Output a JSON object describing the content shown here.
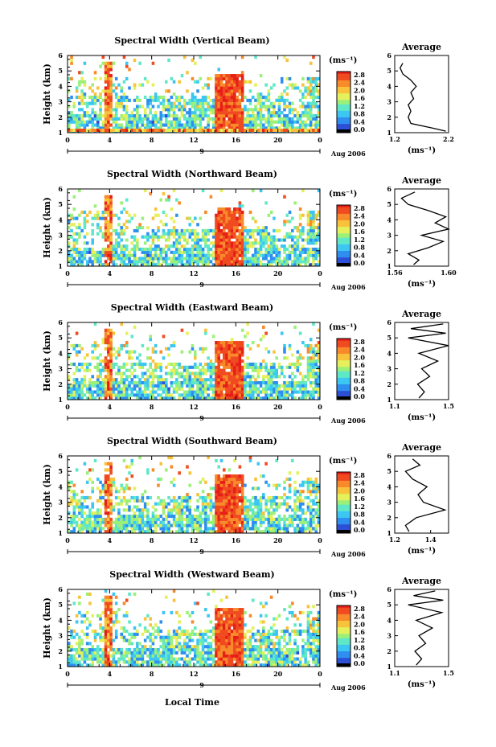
{
  "figure": {
    "xlabel": "Local Time",
    "x_ticks": [
      "0",
      "4",
      "8",
      "12",
      "16",
      "20",
      "0"
    ],
    "date_label": "9",
    "date_suffix": "Aug 2006",
    "colorbar_unit": "(ms⁻¹)",
    "colorbar_ticks": [
      "2.8",
      "2.4",
      "2.0",
      "1.6",
      "1.2",
      "0.8",
      "0.4",
      "0.0"
    ],
    "average_title": "Average",
    "average_unit": "(ms⁻¹)"
  },
  "colors": {
    "colormap": [
      "#1d2a8a",
      "#2b4fd6",
      "#2f8ff0",
      "#3cc6f2",
      "#5ee8c8",
      "#9cf07a",
      "#e6f05a",
      "#f8c23a",
      "#f88a2a",
      "#f04a20",
      "#e61e18"
    ],
    "colorbar_bottom": "#000000"
  },
  "chart_data": [
    {
      "type": "heatmap",
      "title": "Spectral Width (Vertical Beam)",
      "ylabel": "Height (km)",
      "xlabel": "Local Time",
      "xlim": [
        0,
        24
      ],
      "ylim": [
        1,
        6
      ],
      "y_ticks": [
        "1",
        "2",
        "3",
        "4",
        "5",
        "6"
      ],
      "colorbar_range": [
        0.0,
        2.8
      ],
      "features": {
        "storm_start_h": 14.0,
        "storm_end_h": 16.8,
        "storm_top_km": 4.8,
        "spike_h": 3.9,
        "surface_echo": true
      },
      "average_profile": {
        "xlim": [
          1.2,
          2.2
        ],
        "x_ticks": [
          "1.2",
          "2.2"
        ],
        "height_km": [
          1.1,
          1.3,
          1.6,
          2.0,
          2.4,
          2.8,
          3.2,
          3.6,
          4.0,
          4.4,
          4.8,
          5.2,
          5.5
        ],
        "width_ms": [
          2.15,
          1.9,
          1.5,
          1.45,
          1.5,
          1.45,
          1.55,
          1.5,
          1.6,
          1.5,
          1.35,
          1.3,
          1.35
        ]
      }
    },
    {
      "type": "heatmap",
      "title": "Spectral Width (Northward Beam)",
      "ylabel": "Height (km)",
      "xlabel": "Local Time",
      "xlim": [
        0,
        24
      ],
      "ylim": [
        1,
        6
      ],
      "y_ticks": [
        "1",
        "2",
        "3",
        "4",
        "5",
        "6"
      ],
      "colorbar_range": [
        0.0,
        2.8
      ],
      "features": {
        "storm_start_h": 14.0,
        "storm_end_h": 16.8,
        "storm_top_km": 4.8,
        "spike_h": 3.9,
        "surface_echo": false
      },
      "average_profile": {
        "xlim": [
          1.56,
          1.6
        ],
        "x_ticks": [
          "1.56",
          "1.60"
        ],
        "height_km": [
          1.1,
          1.4,
          1.8,
          2.2,
          2.6,
          3.0,
          3.4,
          3.8,
          4.2,
          4.6,
          5.0,
          5.4,
          5.8
        ],
        "width_ms": [
          1.574,
          1.578,
          1.57,
          1.585,
          1.596,
          1.58,
          1.6,
          1.59,
          1.598,
          1.585,
          1.57,
          1.565,
          1.575
        ]
      }
    },
    {
      "type": "heatmap",
      "title": "Spectral Width (Eastward Beam)",
      "ylabel": "Height (km)",
      "xlabel": "Local Time",
      "xlim": [
        0,
        24
      ],
      "ylim": [
        1,
        6
      ],
      "y_ticks": [
        "1",
        "2",
        "3",
        "4",
        "5",
        "6"
      ],
      "colorbar_range": [
        0.0,
        2.8
      ],
      "features": {
        "storm_start_h": 14.0,
        "storm_end_h": 16.8,
        "storm_top_km": 4.8,
        "spike_h": 3.9,
        "surface_echo": false
      },
      "average_profile": {
        "xlim": [
          1.1,
          1.5
        ],
        "x_ticks": [
          "1.1",
          "1.5"
        ],
        "height_km": [
          1.1,
          1.5,
          2.0,
          2.5,
          3.0,
          3.5,
          4.0,
          4.5,
          5.0,
          5.3,
          5.6,
          5.9
        ],
        "width_ms": [
          1.28,
          1.32,
          1.27,
          1.36,
          1.3,
          1.42,
          1.28,
          1.5,
          1.2,
          1.48,
          1.22,
          1.46
        ]
      }
    },
    {
      "type": "heatmap",
      "title": "Spectral Width (Southward Beam)",
      "ylabel": "Height (km)",
      "xlabel": "Local Time",
      "xlim": [
        0,
        24
      ],
      "ylim": [
        1,
        6
      ],
      "y_ticks": [
        "1",
        "2",
        "3",
        "4",
        "5",
        "6"
      ],
      "colorbar_range": [
        0.0,
        2.8
      ],
      "features": {
        "storm_start_h": 14.0,
        "storm_end_h": 16.8,
        "storm_top_km": 4.8,
        "spike_h": 3.9,
        "surface_echo": false
      },
      "average_profile": {
        "xlim": [
          1.2,
          1.5
        ],
        "x_ticks": [
          "1.2",
          "1.4"
        ],
        "height_km": [
          1.1,
          1.5,
          2.0,
          2.5,
          3.0,
          3.5,
          4.0,
          4.5,
          5.0,
          5.4,
          5.8
        ],
        "width_ms": [
          1.28,
          1.26,
          1.32,
          1.48,
          1.36,
          1.33,
          1.38,
          1.3,
          1.26,
          1.34,
          1.3
        ]
      }
    },
    {
      "type": "heatmap",
      "title": "Spectral Width (Westward Beam)",
      "ylabel": "Height (km)",
      "xlabel": "Local Time",
      "xlim": [
        0,
        24
      ],
      "ylim": [
        1,
        6
      ],
      "y_ticks": [
        "1",
        "2",
        "3",
        "4",
        "5",
        "6"
      ],
      "colorbar_range": [
        0.0,
        2.8
      ],
      "features": {
        "storm_start_h": 14.0,
        "storm_end_h": 16.8,
        "storm_top_km": 4.8,
        "spike_h": 3.9,
        "surface_echo": false
      },
      "average_profile": {
        "xlim": [
          1.1,
          1.5
        ],
        "x_ticks": [
          "1.1",
          "1.5"
        ],
        "height_km": [
          1.1,
          1.5,
          2.0,
          2.5,
          3.0,
          3.5,
          4.0,
          4.5,
          5.0,
          5.3,
          5.6,
          5.9
        ],
        "width_ms": [
          1.26,
          1.3,
          1.25,
          1.33,
          1.28,
          1.38,
          1.26,
          1.45,
          1.2,
          1.46,
          1.24,
          1.4
        ]
      }
    }
  ]
}
